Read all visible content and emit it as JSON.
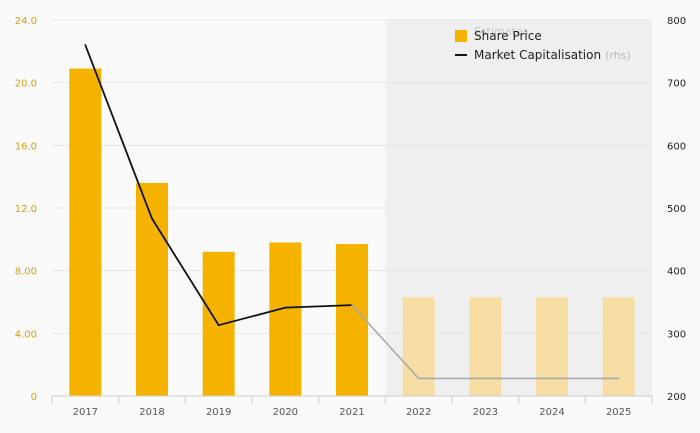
{
  "chart_data": {
    "type": "bar",
    "categories": [
      "2017",
      "2018",
      "2019",
      "2020",
      "2021",
      "2022",
      "2023",
      "2024",
      "2025"
    ],
    "series": [
      {
        "name": "Share Price",
        "kind": "bar",
        "axis": "left",
        "values": [
          20.9,
          13.6,
          9.2,
          9.8,
          9.7,
          6.3,
          6.3,
          6.3,
          6.3
        ],
        "estimated": [
          false,
          false,
          false,
          false,
          false,
          true,
          true,
          true,
          true
        ],
        "color": "#f5b300",
        "estimate_color": "#f5dda3"
      },
      {
        "name": "Market Capitalisation",
        "name_suffix": "(rhs)",
        "kind": "line",
        "axis": "right",
        "values": [
          760,
          483,
          313,
          341,
          345,
          228,
          228,
          228,
          228
        ],
        "estimated": [
          false,
          false,
          false,
          false,
          false,
          true,
          true,
          true,
          true
        ],
        "color": "#111111",
        "estimate_color": "#aaaaaa"
      }
    ],
    "left_axis": {
      "ylim": [
        0,
        24
      ],
      "ticks": [
        0,
        4,
        8,
        12,
        16,
        20,
        24
      ],
      "tick_labels": [
        "0",
        "4.00",
        "8.00",
        "12.0",
        "16.0",
        "20.0",
        "24.0"
      ]
    },
    "right_axis": {
      "ylim": [
        200,
        800
      ],
      "ticks": [
        200,
        300,
        400,
        500,
        600,
        700,
        800
      ],
      "tick_labels": [
        "200",
        "300",
        "400",
        "500",
        "600",
        "700",
        "800"
      ]
    },
    "estimates_label": "Estimates",
    "estimates_from_index": 5,
    "grid": true,
    "legend_position": "top-right"
  }
}
